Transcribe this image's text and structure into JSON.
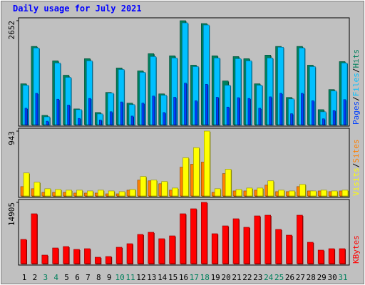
{
  "title": "Daily usage for July 2021",
  "chart_data": [
    {
      "type": "bar",
      "series": [
        {
          "name": "Hits",
          "color": "#00805c",
          "values": [
            1043,
            1996,
            238,
            1628,
            1262,
            402,
            1683,
            311,
            823,
            1445,
            549,
            1372,
            1811,
            786,
            1756,
            2652,
            1518,
            2579,
            1756,
            1116,
            1737,
            1683,
            1043,
            1774,
            1996,
            695,
            1996,
            1518,
            384,
            896,
            1609
          ]
        },
        {
          "name": "Files",
          "color": "#00c0ff",
          "values": [
            1006,
            1957,
            201,
            1573,
            1207,
            384,
            1628,
            274,
            805,
            1408,
            512,
            1335,
            1737,
            750,
            1701,
            2597,
            1481,
            2542,
            1701,
            1006,
            1683,
            1628,
            1006,
            1701,
            1975,
            658,
            1957,
            1481,
            329,
            860,
            1573
          ]
        },
        {
          "name": "Pages",
          "color": "#0040ff",
          "values": [
            420,
            800,
            90,
            650,
            500,
            160,
            670,
            120,
            330,
            580,
            220,
            550,
            730,
            310,
            700,
            1060,
            610,
            1030,
            700,
            450,
            690,
            670,
            420,
            710,
            800,
            280,
            800,
            610,
            150,
            360,
            640
          ]
        }
      ],
      "ylim": [
        0,
        2652
      ],
      "yticks": [
        2652
      ]
    },
    {
      "type": "bar",
      "series": [
        {
          "name": "Sites",
          "color": "#ff8000",
          "values": [
            136,
            105,
            52,
            52,
            52,
            42,
            42,
            42,
            31,
            31,
            84,
            230,
            220,
            178,
            84,
            419,
            461,
            492,
            52,
            325,
            73,
            73,
            84,
            157,
            63,
            63,
            136,
            73,
            73,
            63,
            73
          ]
        },
        {
          "name": "Visits",
          "color": "#ffff00",
          "values": [
            334,
            199,
            105,
            94,
            84,
            84,
            73,
            84,
            73,
            63,
            94,
            283,
            230,
            210,
            115,
            555,
            702,
            943,
            105,
            388,
            94,
            115,
            115,
            220,
            84,
            73,
            168,
            73,
            84,
            73,
            84
          ]
        }
      ],
      "ylim": [
        0,
        943
      ],
      "yticks": [
        943
      ]
    },
    {
      "type": "bar",
      "categories": [
        "1",
        "2",
        "3",
        "4",
        "5",
        "6",
        "7",
        "8",
        "9",
        "10",
        "11",
        "12",
        "13",
        "14",
        "15",
        "16",
        "17",
        "18",
        "19",
        "20",
        "21",
        "22",
        "23",
        "24",
        "25",
        "26",
        "27",
        "28",
        "29",
        "30",
        "31"
      ],
      "category_colors": [
        "#000000",
        "#000000",
        "#00805c",
        "#00805c",
        "#000000",
        "#000000",
        "#000000",
        "#000000",
        "#000000",
        "#00805c",
        "#00805c",
        "#000000",
        "#000000",
        "#000000",
        "#000000",
        "#000000",
        "#00805c",
        "#00805c",
        "#000000",
        "#000000",
        "#000000",
        "#000000",
        "#000000",
        "#00805c",
        "#00805c",
        "#000000",
        "#000000",
        "#000000",
        "#000000",
        "#000000",
        "#00805c"
      ],
      "series": [
        {
          "name": "KBytes",
          "color": "#ff0000",
          "values": [
            5893,
            12133,
            2080,
            3813,
            4160,
            3467,
            3640,
            1560,
            1733,
            3987,
            4853,
            7107,
            7627,
            6067,
            6760,
            12133,
            13347,
            14905,
            7280,
            9187,
            10920,
            8840,
            11613,
            11787,
            8320,
            6933,
            11787,
            5200,
            3293,
            3640,
            3640
          ]
        }
      ],
      "ylim": [
        0,
        14905
      ],
      "yticks": [
        14905
      ]
    }
  ]
}
